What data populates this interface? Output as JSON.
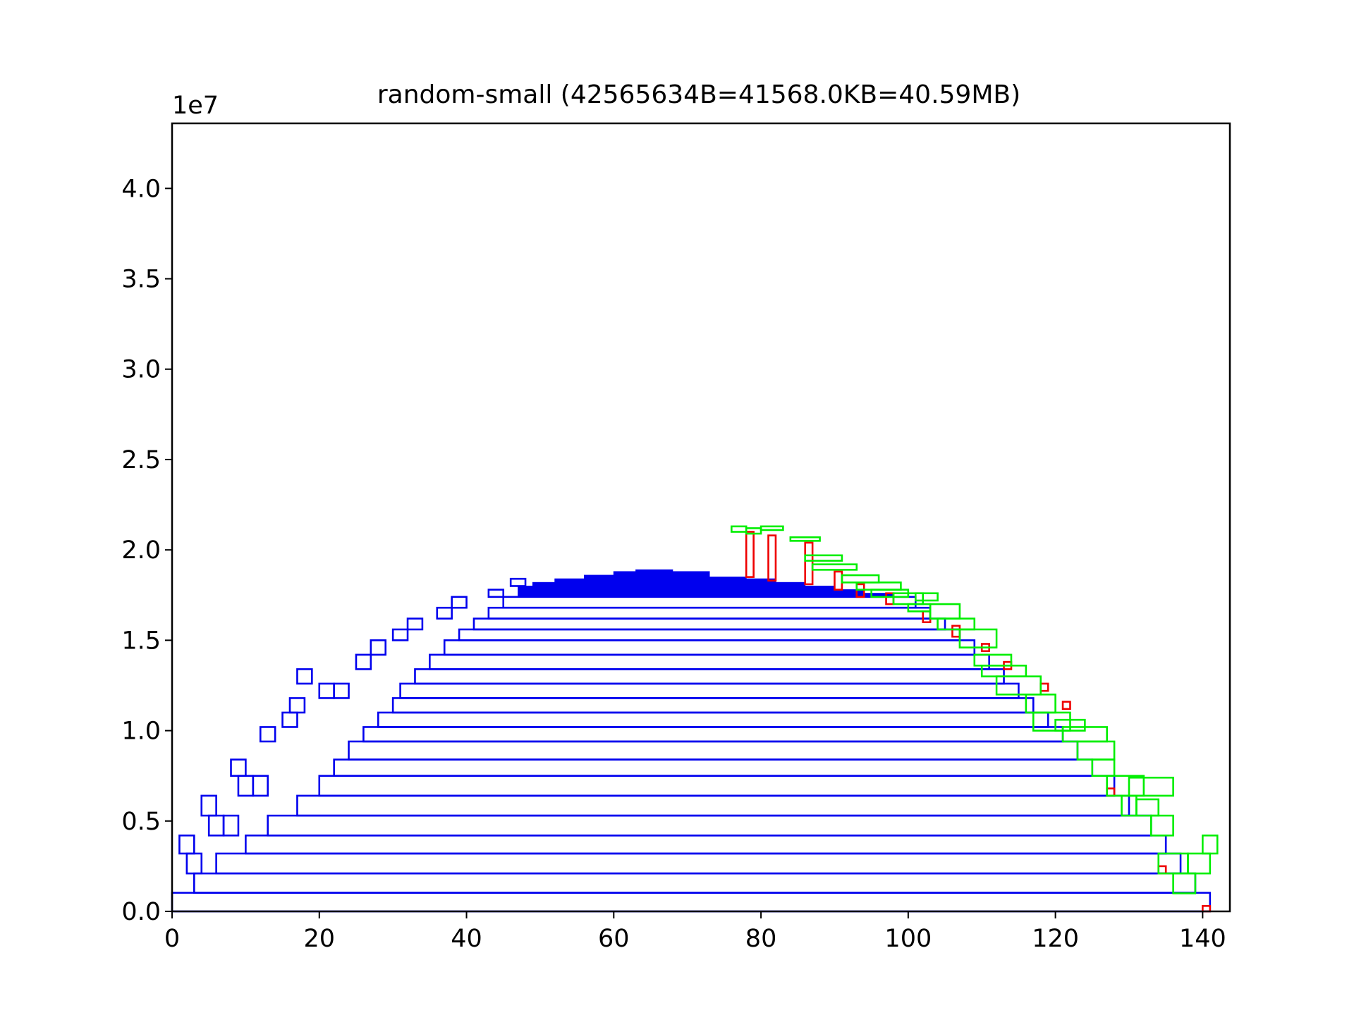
{
  "chart_data": {
    "type": "area",
    "title": "random-small (42565634B=41568.0KB=40.59MB)",
    "xlabel": "",
    "ylabel": "",
    "y_offset_label": "1e7",
    "xlim": [
      0,
      143.7
    ],
    "ylim": [
      0,
      4.36
    ],
    "grid": false,
    "legend": "none",
    "x_ticks": [
      {
        "value": 0,
        "label": "0"
      },
      {
        "value": 20,
        "label": "20"
      },
      {
        "value": 40,
        "label": "40"
      },
      {
        "value": 60,
        "label": "60"
      },
      {
        "value": 80,
        "label": "80"
      },
      {
        "value": 100,
        "label": "100"
      },
      {
        "value": 120,
        "label": "120"
      },
      {
        "value": 140,
        "label": "140"
      }
    ],
    "y_ticks": [
      {
        "value": 0.0,
        "label": "0.0"
      },
      {
        "value": 0.5,
        "label": "0.5"
      },
      {
        "value": 1.0,
        "label": "1.0"
      },
      {
        "value": 1.5,
        "label": "1.5"
      },
      {
        "value": 2.0,
        "label": "2.0"
      },
      {
        "value": 2.5,
        "label": "2.5"
      },
      {
        "value": 3.0,
        "label": "3.0"
      },
      {
        "value": 3.5,
        "label": "3.5"
      },
      {
        "value": 4.0,
        "label": "4.0"
      }
    ],
    "colors": {
      "blue": "#0000ee",
      "green": "#00ee00",
      "red": "#ee0000"
    },
    "blue_boxes": [
      [
        0,
        141,
        0,
        0.103
      ],
      [
        3,
        139,
        0.103,
        0.21
      ],
      [
        6,
        137,
        0.21,
        0.32
      ],
      [
        10,
        135,
        0.32,
        0.42
      ],
      [
        13,
        133,
        0.42,
        0.53
      ],
      [
        17,
        130,
        0.53,
        0.64
      ],
      [
        20,
        128,
        0.64,
        0.75
      ],
      [
        22,
        125,
        0.75,
        0.84
      ],
      [
        24,
        123,
        0.84,
        0.94
      ],
      [
        26,
        121,
        0.94,
        1.02
      ],
      [
        28,
        119,
        1.02,
        1.1
      ],
      [
        30,
        117,
        1.1,
        1.18
      ],
      [
        31,
        115,
        1.18,
        1.26
      ],
      [
        33,
        113,
        1.26,
        1.34
      ],
      [
        35,
        111,
        1.34,
        1.42
      ],
      [
        37,
        109,
        1.42,
        1.5
      ],
      [
        39,
        107,
        1.5,
        1.56
      ],
      [
        41,
        105,
        1.56,
        1.62
      ],
      [
        43,
        103,
        1.62,
        1.68
      ],
      [
        45,
        101,
        1.68,
        1.74
      ]
    ],
    "blue_small_boxes": [
      [
        1,
        3,
        0.32,
        0.42
      ],
      [
        2,
        4,
        0.21,
        0.32
      ],
      [
        4,
        6,
        0.53,
        0.64
      ],
      [
        5,
        7,
        0.42,
        0.53
      ],
      [
        7,
        9,
        0.42,
        0.53
      ],
      [
        8,
        10,
        0.75,
        0.84
      ],
      [
        9,
        11,
        0.64,
        0.75
      ],
      [
        11,
        13,
        0.64,
        0.75
      ],
      [
        12,
        14,
        0.94,
        1.02
      ],
      [
        15,
        17,
        1.02,
        1.1
      ],
      [
        16,
        18,
        1.1,
        1.18
      ],
      [
        17,
        19,
        1.26,
        1.34
      ],
      [
        20,
        22,
        1.18,
        1.26
      ],
      [
        22,
        24,
        1.18,
        1.26
      ],
      [
        25,
        27,
        1.34,
        1.42
      ],
      [
        27,
        29,
        1.42,
        1.5
      ],
      [
        30,
        32,
        1.5,
        1.56
      ],
      [
        32,
        34,
        1.56,
        1.62
      ],
      [
        36,
        38,
        1.62,
        1.68
      ],
      [
        38,
        40,
        1.68,
        1.74
      ],
      [
        43,
        45,
        1.74,
        1.78
      ],
      [
        46,
        48,
        1.8,
        1.84
      ]
    ],
    "blue_fill_steps": [
      [
        47,
        49,
        1.74,
        1.8
      ],
      [
        49,
        52,
        1.74,
        1.82
      ],
      [
        52,
        56,
        1.74,
        1.84
      ],
      [
        56,
        60,
        1.74,
        1.86
      ],
      [
        60,
        63,
        1.74,
        1.88
      ],
      [
        63,
        68,
        1.74,
        1.89
      ],
      [
        68,
        73,
        1.74,
        1.88
      ],
      [
        73,
        78,
        1.74,
        1.85
      ],
      [
        78,
        82,
        1.74,
        1.84
      ],
      [
        82,
        86,
        1.74,
        1.82
      ],
      [
        86,
        90,
        1.74,
        1.8
      ],
      [
        90,
        94,
        1.74,
        1.78
      ],
      [
        94,
        98,
        1.74,
        1.76
      ]
    ],
    "green_boxes": [
      [
        76,
        78,
        2.1,
        2.13
      ],
      [
        78,
        80,
        2.09,
        2.12
      ],
      [
        80,
        83,
        2.11,
        2.13
      ],
      [
        84,
        88,
        2.05,
        2.07
      ],
      [
        86,
        91,
        1.94,
        1.97
      ],
      [
        87,
        93,
        1.89,
        1.92
      ],
      [
        91,
        96,
        1.82,
        1.86
      ],
      [
        93,
        99,
        1.78,
        1.82
      ],
      [
        95,
        100,
        1.74,
        1.78
      ],
      [
        98,
        102,
        1.7,
        1.76
      ],
      [
        100,
        103,
        1.66,
        1.7
      ],
      [
        101,
        104,
        1.72,
        1.76
      ],
      [
        103,
        107,
        1.62,
        1.7
      ],
      [
        104,
        109,
        1.56,
        1.62
      ],
      [
        107,
        112,
        1.46,
        1.56
      ],
      [
        109,
        114,
        1.36,
        1.42
      ],
      [
        110,
        116,
        1.3,
        1.36
      ],
      [
        112,
        118,
        1.2,
        1.3
      ],
      [
        116,
        120,
        1.1,
        1.2
      ],
      [
        117,
        122,
        1.0,
        1.1
      ],
      [
        120,
        124,
        1.0,
        1.06
      ],
      [
        121,
        127,
        0.94,
        1.02
      ],
      [
        123,
        128,
        0.84,
        0.94
      ],
      [
        125,
        128,
        0.75,
        0.84
      ],
      [
        127,
        132,
        0.64,
        0.75
      ],
      [
        129,
        131,
        0.53,
        0.64
      ],
      [
        130,
        136,
        0.64,
        0.74
      ],
      [
        131,
        134,
        0.53,
        0.62
      ],
      [
        133,
        136,
        0.42,
        0.53
      ],
      [
        134,
        138,
        0.21,
        0.32
      ],
      [
        136,
        139,
        0.1,
        0.21
      ],
      [
        138,
        141,
        0.21,
        0.32
      ],
      [
        140,
        142,
        0.32,
        0.42
      ]
    ],
    "red_boxes": [
      [
        78,
        79,
        1.85,
        2.1
      ],
      [
        81,
        82,
        1.83,
        2.08
      ],
      [
        86,
        87,
        1.81,
        2.04
      ],
      [
        90,
        91,
        1.78,
        1.88
      ],
      [
        93,
        94,
        1.74,
        1.81
      ],
      [
        97,
        98,
        1.7,
        1.76
      ],
      [
        102,
        103,
        1.6,
        1.66
      ],
      [
        106,
        107,
        1.52,
        1.58
      ],
      [
        110,
        111,
        1.44,
        1.48
      ],
      [
        113,
        114,
        1.34,
        1.38
      ],
      [
        118,
        119,
        1.22,
        1.26
      ],
      [
        121,
        122,
        1.12,
        1.16
      ],
      [
        127,
        128,
        0.64,
        0.68
      ],
      [
        134,
        135,
        0.21,
        0.25
      ],
      [
        140,
        141,
        0.0,
        0.03
      ]
    ]
  }
}
